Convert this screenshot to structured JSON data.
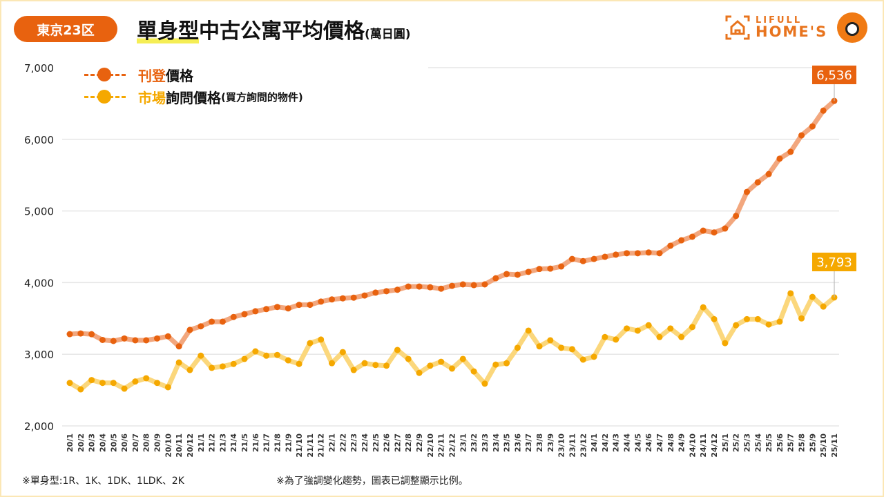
{
  "header": {
    "region_badge": "東京23区",
    "title_highlight": "單身型",
    "title_rest": "中古公寓平均價格",
    "title_unit": "(萬日圓)",
    "logo_line1": "LIFULL",
    "logo_line2": "HOME'S"
  },
  "legend": {
    "listed_colored": "刊登",
    "listed_rest": "價格",
    "inquiry_colored": "市場",
    "inquiry_rest": "詢問價格",
    "inquiry_note": "(買方詢問的物件)"
  },
  "footer": {
    "note_left": "※單身型:1R、1K、1DK、1LDK、2K",
    "note_right": "※為了強調變化趨勢，圖表已調整顯示比例。"
  },
  "colors": {
    "listed": "#e8620f",
    "listed_line": "#f2a77e",
    "inquiry": "#f5a800",
    "inquiry_line": "#fbd77c",
    "grid": "#e6e6e6"
  },
  "chart_data": {
    "type": "line",
    "title": "單身型中古公寓平均價格(萬日圓)",
    "ylim": [
      2000,
      7000
    ],
    "yticks": [
      "2,000",
      "3,000",
      "4,000",
      "5,000",
      "6,000",
      "7,000"
    ],
    "ytick_values": [
      2000,
      3000,
      4000,
      5000,
      6000,
      7000
    ],
    "grid": true,
    "legend_position": "top-left",
    "x": [
      "20/1",
      "20/2",
      "20/3",
      "20/4",
      "20/5",
      "20/6",
      "20/7",
      "20/8",
      "20/9",
      "20/10",
      "20/11",
      "20/12",
      "21/1",
      "21/2",
      "21/3",
      "21/4",
      "21/5",
      "21/6",
      "21/7",
      "21/8",
      "21/9",
      "21/10",
      "21/11",
      "21/12",
      "22/1",
      "22/2",
      "22/3",
      "22/4",
      "22/5",
      "22/6",
      "22/7",
      "22/8",
      "22/9",
      "22/10",
      "22/11",
      "22/12",
      "23/1",
      "23/2",
      "23/3",
      "23/4",
      "23/5",
      "23/6",
      "23/7",
      "23/8",
      "23/9",
      "23/10",
      "23/11",
      "23/12",
      "24/1",
      "24/2",
      "24/3",
      "24/4",
      "24/5",
      "24/6",
      "24/7",
      "24/8",
      "24/9",
      "24/10",
      "24/11",
      "24/12",
      "25/1",
      "25/2",
      "25/3",
      "25/4",
      "25/5",
      "25/6",
      "25/7",
      "25/8",
      "25/9",
      "25/10",
      "25/11"
    ],
    "series": [
      {
        "name": "刊登價格",
        "last_label": "6,536",
        "values": [
          3281,
          3290,
          3280,
          3200,
          3185,
          3220,
          3195,
          3195,
          3220,
          3250,
          3110,
          3340,
          3390,
          3455,
          3455,
          3520,
          3560,
          3600,
          3630,
          3660,
          3640,
          3690,
          3690,
          3735,
          3765,
          3780,
          3790,
          3820,
          3860,
          3880,
          3900,
          3945,
          3945,
          3935,
          3915,
          3955,
          3975,
          3965,
          3975,
          4060,
          4120,
          4110,
          4150,
          4190,
          4195,
          4225,
          4330,
          4300,
          4330,
          4360,
          4390,
          4410,
          4410,
          4420,
          4410,
          4515,
          4590,
          4640,
          4725,
          4700,
          4755,
          4930,
          5265,
          5400,
          5515,
          5730,
          5825,
          6055,
          6180,
          6400,
          6536
        ]
      },
      {
        "name": "市場詢問價格(買方詢問的物件)",
        "last_label": "3,793",
        "values": [
          2600,
          2510,
          2640,
          2600,
          2600,
          2520,
          2620,
          2665,
          2600,
          2540,
          2885,
          2780,
          2980,
          2810,
          2830,
          2865,
          2935,
          3040,
          2980,
          2990,
          2915,
          2865,
          3155,
          3205,
          2875,
          3030,
          2780,
          2875,
          2850,
          2840,
          3060,
          2935,
          2740,
          2840,
          2895,
          2800,
          2935,
          2760,
          2590,
          2855,
          2875,
          3090,
          3330,
          3110,
          3195,
          3090,
          3070,
          2925,
          2965,
          3240,
          3205,
          3360,
          3330,
          3405,
          3240,
          3360,
          3240,
          3380,
          3655,
          3490,
          3155,
          3405,
          3490,
          3490,
          3415,
          3455,
          3850,
          3500,
          3800,
          3665,
          3793
        ]
      }
    ]
  }
}
